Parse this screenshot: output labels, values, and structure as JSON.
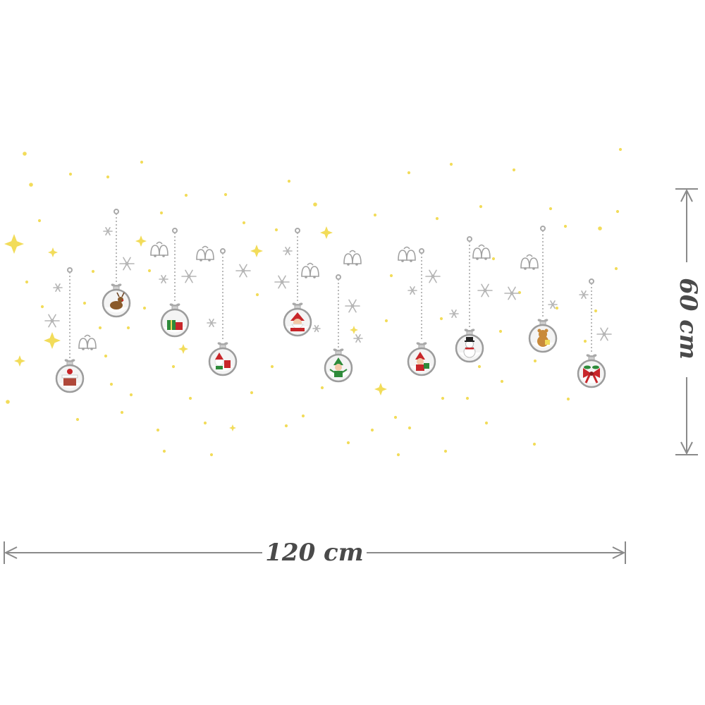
{
  "dimensions": {
    "width_label": "120 cm",
    "height_label": "60 cm"
  },
  "ornaments": [
    {
      "name": "chimney-ornament",
      "icon": "chimney-icon"
    },
    {
      "name": "reindeer-ornament",
      "icon": "reindeer-icon"
    },
    {
      "name": "gift-ornament",
      "icon": "gift-icon"
    },
    {
      "name": "santa-and-reindeer-ornament",
      "icon": "santa-small-icon"
    },
    {
      "name": "santa-ornament",
      "icon": "santa-icon"
    },
    {
      "name": "elf-ornament",
      "icon": "elf-icon"
    },
    {
      "name": "santa-gift-ornament",
      "icon": "santa-gift-icon"
    },
    {
      "name": "snowman-ornament",
      "icon": "snowman-icon"
    },
    {
      "name": "teddy-bear-ornament",
      "icon": "bear-icon"
    },
    {
      "name": "bow-ornament",
      "icon": "holly-bow-icon"
    }
  ],
  "colors": {
    "star": "#f2dc5a",
    "chain": "#b8b8b8",
    "ball_outline": "#9c9c9c",
    "dimension_text": "#4a4a4a",
    "santa_red": "#c8262a",
    "gift_green": "#2e8b3a",
    "bear_brown": "#c98a3a"
  }
}
